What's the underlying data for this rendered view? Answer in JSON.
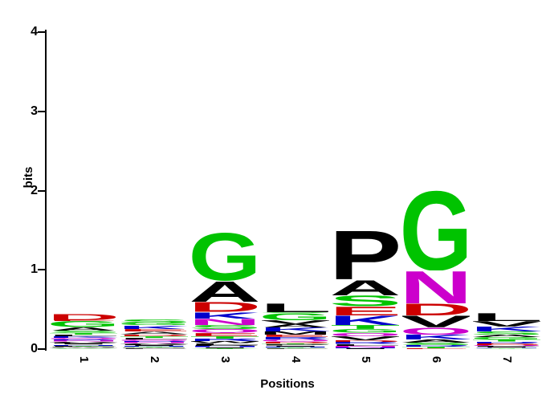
{
  "chart_data": {
    "type": "sequence_logo",
    "title": "",
    "xlabel": "Positions",
    "ylabel": "bits",
    "ylim": [
      0,
      4.3
    ],
    "yticks": [
      "0",
      "1",
      "2",
      "3",
      "4"
    ],
    "grid": false,
    "legend": "none",
    "residue_colors": {
      "A": "#000000",
      "V": "#000000",
      "L": "#000000",
      "I": "#000000",
      "P": "#000000",
      "W": "#000000",
      "F": "#000000",
      "M": "#000000",
      "G": "#00C300",
      "S": "#00C300",
      "T": "#00C300",
      "Y": "#00C300",
      "C": "#00C300",
      "D": "#CC0000",
      "E": "#CC0000",
      "K": "#0000CC",
      "R": "#0000CC",
      "H": "#0000CC",
      "N": "#CC00CC",
      "Q": "#CC00CC"
    },
    "positions": [
      {
        "label": "1",
        "stack": [
          [
            "D",
            0.08
          ],
          [
            "E",
            0.012
          ],
          [
            "G",
            0.078
          ],
          [
            "A",
            0.047
          ],
          [
            "S",
            0.028
          ],
          [
            "T",
            0.02
          ],
          [
            "L",
            0.02
          ],
          [
            "K",
            0.02
          ],
          [
            "Q",
            0.018
          ],
          [
            "R",
            0.015
          ],
          [
            "N",
            0.015
          ],
          [
            "V",
            0.015
          ],
          [
            "P",
            0.012
          ],
          [
            "I",
            0.012
          ],
          [
            "H",
            0.01
          ],
          [
            "Y",
            0.01
          ],
          [
            "F",
            0.01
          ],
          [
            "M",
            0.008
          ],
          [
            "W",
            0.008
          ],
          [
            "C",
            0.008
          ]
        ]
      },
      {
        "label": "2",
        "stack": [
          [
            "S",
            0.045
          ],
          [
            "G",
            0.032
          ],
          [
            "K",
            0.048
          ],
          [
            "E",
            0.03
          ],
          [
            "A",
            0.034
          ],
          [
            "D",
            0.02
          ],
          [
            "T",
            0.024
          ],
          [
            "L",
            0.02
          ],
          [
            "Q",
            0.018
          ],
          [
            "R",
            0.018
          ],
          [
            "N",
            0.014
          ],
          [
            "V",
            0.014
          ],
          [
            "P",
            0.012
          ],
          [
            "I",
            0.01
          ],
          [
            "H",
            0.01
          ],
          [
            "Y",
            0.01
          ],
          [
            "M",
            0.008
          ],
          [
            "F",
            0.008
          ]
        ]
      },
      {
        "label": "3",
        "stack": [
          [
            "G",
            0.61
          ],
          [
            "A",
            0.27
          ],
          [
            "D",
            0.125
          ],
          [
            "K",
            0.09
          ],
          [
            "N",
            0.08
          ],
          [
            "S",
            0.05
          ],
          [
            "Q",
            0.045
          ],
          [
            "E",
            0.04
          ],
          [
            "T",
            0.035
          ],
          [
            "R",
            0.03
          ],
          [
            "W",
            0.025
          ],
          [
            "L",
            0.02
          ],
          [
            "P",
            0.018
          ],
          [
            "H",
            0.015
          ],
          [
            "I",
            0.012
          ],
          [
            "Y",
            0.01
          ]
        ]
      },
      {
        "label": "4",
        "stack": [
          [
            "L",
            0.115
          ],
          [
            "S",
            0.012
          ],
          [
            "G",
            0.09
          ],
          [
            "V",
            0.05
          ],
          [
            "A",
            0.045
          ],
          [
            "K",
            0.05
          ],
          [
            "M",
            0.04
          ],
          [
            "E",
            0.028
          ],
          [
            "R",
            0.03
          ],
          [
            "Q",
            0.025
          ],
          [
            "D",
            0.02
          ],
          [
            "T",
            0.02
          ],
          [
            "P",
            0.015
          ],
          [
            "I",
            0.012
          ],
          [
            "H",
            0.01
          ],
          [
            "Y",
            0.01
          ],
          [
            "F",
            0.008
          ]
        ]
      },
      {
        "label": "5",
        "stack": [
          [
            "P",
            0.63
          ],
          [
            "A",
            0.2
          ],
          [
            "S",
            0.135
          ],
          [
            "E",
            0.115
          ],
          [
            "K",
            0.125
          ],
          [
            "T",
            0.05
          ],
          [
            "G",
            0.045
          ],
          [
            "Q",
            0.04
          ],
          [
            "V",
            0.05
          ],
          [
            "D",
            0.025
          ],
          [
            "R",
            0.025
          ],
          [
            "L",
            0.02
          ],
          [
            "N",
            0.02
          ],
          [
            "H",
            0.012
          ],
          [
            "I",
            0.012
          ]
        ]
      },
      {
        "label": "6",
        "stack": [
          [
            "G",
            1.02
          ],
          [
            "N",
            0.42
          ],
          [
            "D",
            0.155
          ],
          [
            "V",
            0.15
          ],
          [
            "Q",
            0.09
          ],
          [
            "K",
            0.06
          ],
          [
            "A",
            0.04
          ],
          [
            "S",
            0.03
          ],
          [
            "R",
            0.02
          ],
          [
            "T",
            0.02
          ],
          [
            "E",
            0.012
          ]
        ]
      },
      {
        "label": "7",
        "stack": [
          [
            "L",
            0.105
          ],
          [
            "V",
            0.07
          ],
          [
            "K",
            0.06
          ],
          [
            "S",
            0.045
          ],
          [
            "A",
            0.03
          ],
          [
            "G",
            0.03
          ],
          [
            "T",
            0.025
          ],
          [
            "R",
            0.02
          ],
          [
            "E",
            0.015
          ],
          [
            "D",
            0.012
          ],
          [
            "Q",
            0.012
          ],
          [
            "P",
            0.01
          ],
          [
            "I",
            0.01
          ],
          [
            "H",
            0.008
          ],
          [
            "Y",
            0.008
          ]
        ]
      }
    ]
  },
  "layout_text": {
    "ylabel": "bits",
    "xlabel": "Positions"
  }
}
